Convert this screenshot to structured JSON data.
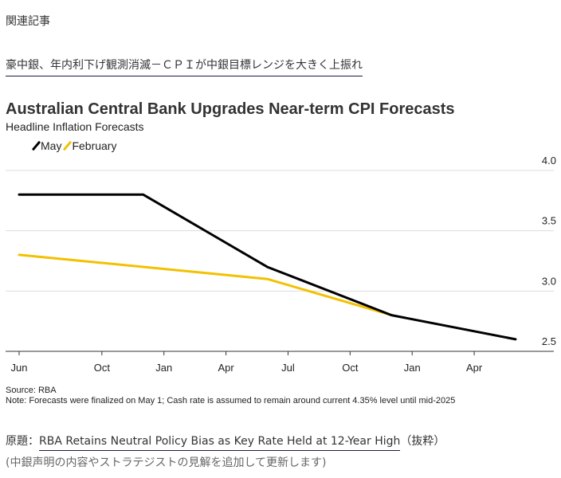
{
  "related": {
    "label": "関連記事",
    "link_text": "豪中銀、年内利下げ観測消滅－ＣＰＩが中銀目標レンジを大きく上振れ"
  },
  "chart_data": {
    "type": "line",
    "title": "Australian Central Bank Upgrades Near-term CPI Forecasts",
    "subtitle": "Headline Inflation Forecasts",
    "xlabel": "",
    "ylabel": "",
    "x": [
      "2024-06",
      "2024-12",
      "2025-06",
      "2025-12",
      "2026-06"
    ],
    "x_domain": [
      "2024-06",
      "2026-07"
    ],
    "x_ticks": [
      {
        "label": "Jun",
        "date": "2024-06"
      },
      {
        "label": "Oct",
        "date": "2024-10"
      },
      {
        "label": "Jan",
        "date": "2025-01"
      },
      {
        "label": "Apr",
        "date": "2025-04"
      },
      {
        "label": "Jul",
        "date": "2025-07"
      },
      {
        "label": "Oct",
        "date": "2025-10"
      },
      {
        "label": "Jan",
        "date": "2026-01"
      },
      {
        "label": "Apr",
        "date": "2026-04"
      }
    ],
    "y_ticks": [
      "4.0",
      "3.5",
      "3.0",
      "2.5"
    ],
    "ylim": [
      2.5,
      4.0
    ],
    "grid": true,
    "legend_position": "top-left",
    "series": [
      {
        "name": "May",
        "color": "#000000",
        "x": [
          "2024-06",
          "2024-12",
          "2025-06",
          "2025-12",
          "2026-06"
        ],
        "values": [
          3.8,
          3.8,
          3.2,
          2.8,
          2.6
        ]
      },
      {
        "name": "February",
        "color": "#f2c100",
        "x": [
          "2024-06",
          "2025-06",
          "2025-12"
        ],
        "values": [
          3.3,
          3.1,
          2.8
        ]
      }
    ]
  },
  "footer": {
    "source": "Source: RBA",
    "note": "Note: Forecasts were finalized on May 1; Cash rate is assumed to remain around current 4.35% level until mid-2025"
  },
  "original": {
    "prefix": "原題：",
    "link_text": "RBA Retains Neutral Policy Bias as Key Rate Held at 12-Year High",
    "suffix": "（抜粋）",
    "update_note": "(中銀声明の内容やストラテジストの見解を追加して更新します)"
  }
}
